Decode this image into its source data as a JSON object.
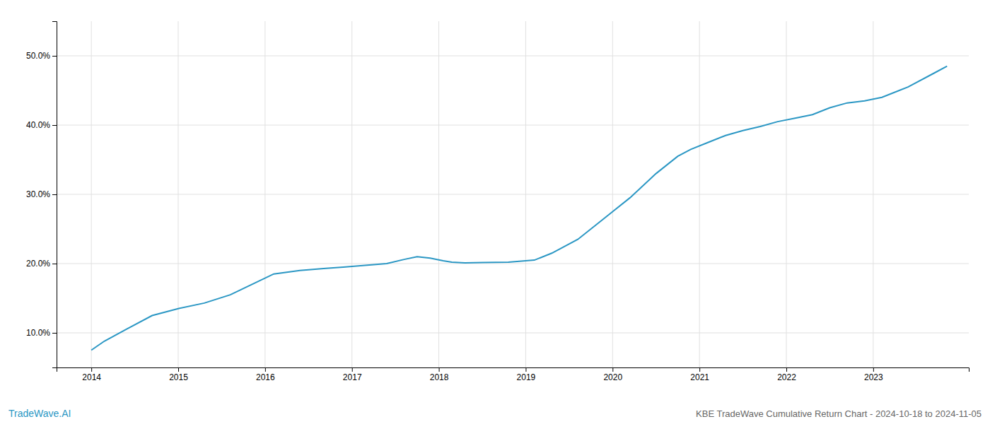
{
  "chart_data": {
    "type": "line",
    "title": "KBE TradeWave Cumulative Return Chart - 2024-10-18 to 2024-11-05",
    "annotations": [
      "TradeWave.AI"
    ],
    "color": "#2b97c4",
    "grid": true,
    "x": [
      2014.0,
      2014.15,
      2014.4,
      2014.7,
      2015.0,
      2015.3,
      2015.6,
      2015.85,
      2016.1,
      2016.4,
      2016.7,
      2016.9,
      2017.1,
      2017.4,
      2017.6,
      2017.75,
      2017.9,
      2018.05,
      2018.15,
      2018.3,
      2018.5,
      2018.8,
      2019.1,
      2019.3,
      2019.6,
      2019.85,
      2020.0,
      2020.2,
      2020.5,
      2020.75,
      2020.9,
      2021.1,
      2021.3,
      2021.5,
      2021.7,
      2021.9,
      2022.1,
      2022.3,
      2022.5,
      2022.7,
      2022.9,
      2023.1,
      2023.4,
      2023.7,
      2023.85
    ],
    "values": [
      7.5,
      8.8,
      10.5,
      12.5,
      13.5,
      14.3,
      15.5,
      17.0,
      18.5,
      19.0,
      19.3,
      19.5,
      19.7,
      20.0,
      20.6,
      21.0,
      20.8,
      20.4,
      20.2,
      20.1,
      20.15,
      20.2,
      20.5,
      21.5,
      23.5,
      26.0,
      27.5,
      29.5,
      33.0,
      35.5,
      36.5,
      37.5,
      38.5,
      39.2,
      39.8,
      40.5,
      41.0,
      41.5,
      42.5,
      43.2,
      43.5,
      44.0,
      45.5,
      47.5,
      48.5
    ],
    "xlim": [
      2013.6,
      2024.1
    ],
    "xticks": [
      2014,
      2015,
      2016,
      2017,
      2018,
      2019,
      2020,
      2021,
      2022,
      2023
    ],
    "ylim": [
      5,
      55
    ],
    "yticks": [
      {
        "value": 10.0,
        "label": "10.0%"
      },
      {
        "value": 20.0,
        "label": "20.0%"
      },
      {
        "value": 30.0,
        "label": "30.0%"
      },
      {
        "value": 40.0,
        "label": "40.0%"
      },
      {
        "value": 50.0,
        "label": "50.0%"
      }
    ]
  }
}
